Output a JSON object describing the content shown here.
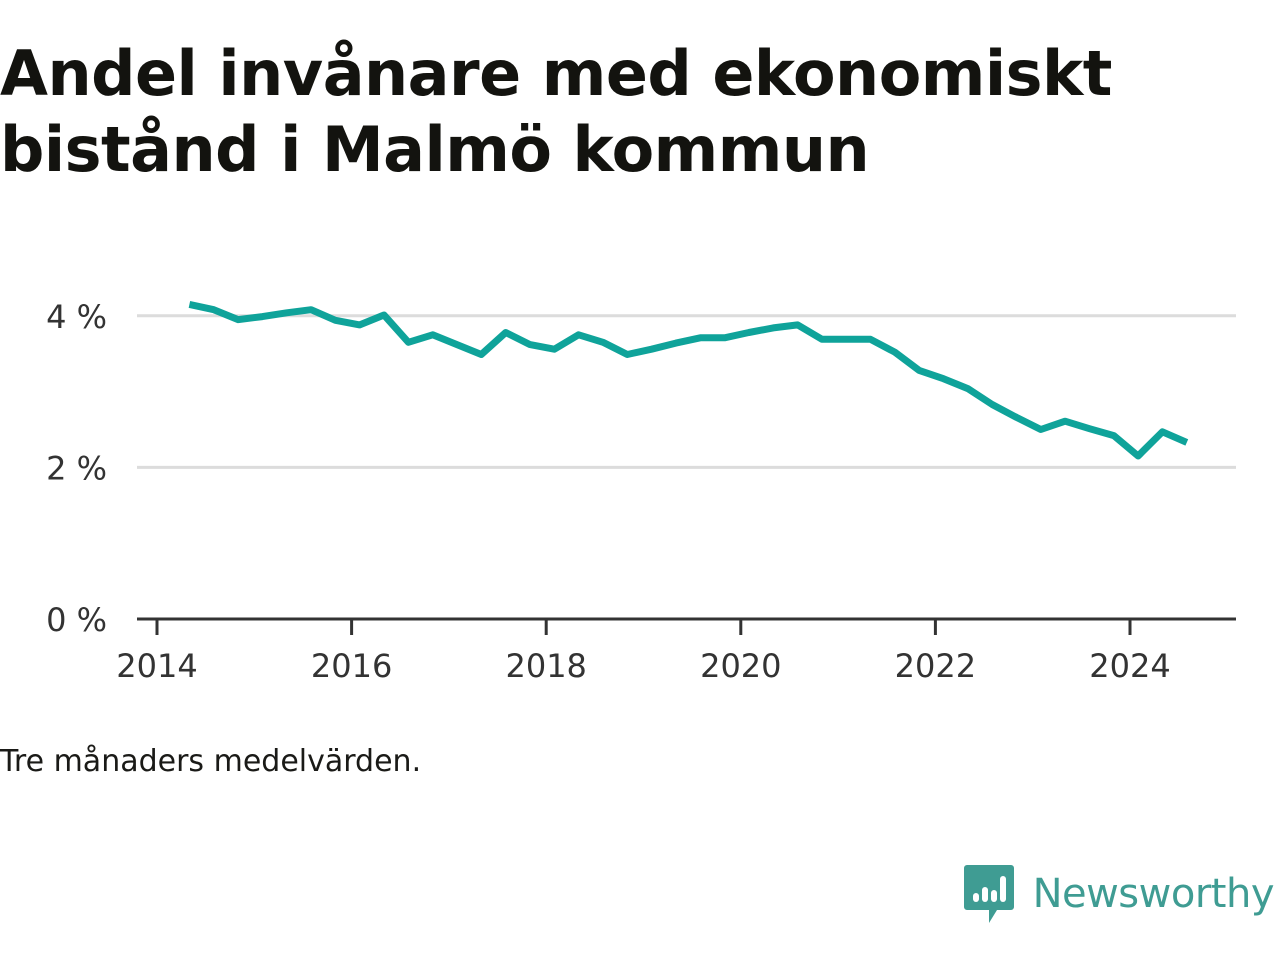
{
  "title": "Andel invånare med ekonomiskt bistånd i Malmö kommun",
  "caption": "Tre månaders medelvärden.",
  "brand": {
    "name": "Newsworthy",
    "icon": "newsworthy-logo-icon",
    "color": "#3f9c93"
  },
  "colors": {
    "line": "#0fa39a",
    "grid": "#dcdcdc",
    "axis": "#333333"
  },
  "chart_data": {
    "type": "line",
    "title": "Andel invånare med ekonomiskt bistånd i Malmö kommun",
    "xlabel": "",
    "ylabel": "",
    "xlim": [
      2014,
      2025.1
    ],
    "ylim": [
      0,
      4.4
    ],
    "y_ticks": [
      {
        "value": 0,
        "label": "0 %"
      },
      {
        "value": 2,
        "label": "2 %"
      },
      {
        "value": 4,
        "label": "4 %"
      }
    ],
    "x_ticks": [
      {
        "value": 2014,
        "label": "2014"
      },
      {
        "value": 2016,
        "label": "2016"
      },
      {
        "value": 2018,
        "label": "2018"
      },
      {
        "value": 2020,
        "label": "2020"
      },
      {
        "value": 2022,
        "label": "2022"
      },
      {
        "value": 2024,
        "label": "2024"
      }
    ],
    "grid": true,
    "legend": "none",
    "series": [
      {
        "x": [
          "2014-05",
          "2014-08",
          "2014-11",
          "2015-02",
          "2015-05",
          "2015-08",
          "2015-11",
          "2016-02",
          "2016-05",
          "2016-08",
          "2016-11",
          "2017-02",
          "2017-05",
          "2017-08",
          "2017-11",
          "2018-02",
          "2018-05",
          "2018-08",
          "2018-11",
          "2019-02",
          "2019-05",
          "2019-08",
          "2019-11",
          "2020-02",
          "2020-05",
          "2020-08",
          "2020-11",
          "2021-02",
          "2021-05",
          "2021-08",
          "2021-11",
          "2022-02",
          "2022-05",
          "2022-08",
          "2022-11",
          "2023-02",
          "2023-05",
          "2023-08",
          "2023-11",
          "2024-02",
          "2024-05",
          "2024-08"
        ],
        "values": [
          4.15,
          4.08,
          3.95,
          3.99,
          4.04,
          4.08,
          3.94,
          3.88,
          4.01,
          3.65,
          3.75,
          3.62,
          3.49,
          3.78,
          3.62,
          3.56,
          3.75,
          3.65,
          3.49,
          3.56,
          3.64,
          3.71,
          3.71,
          3.78,
          3.84,
          3.88,
          3.69,
          3.69,
          3.69,
          3.52,
          3.28,
          3.17,
          3.04,
          2.83,
          2.66,
          2.5,
          2.61,
          2.51,
          2.42,
          2.15,
          2.47,
          2.33
        ]
      }
    ]
  }
}
